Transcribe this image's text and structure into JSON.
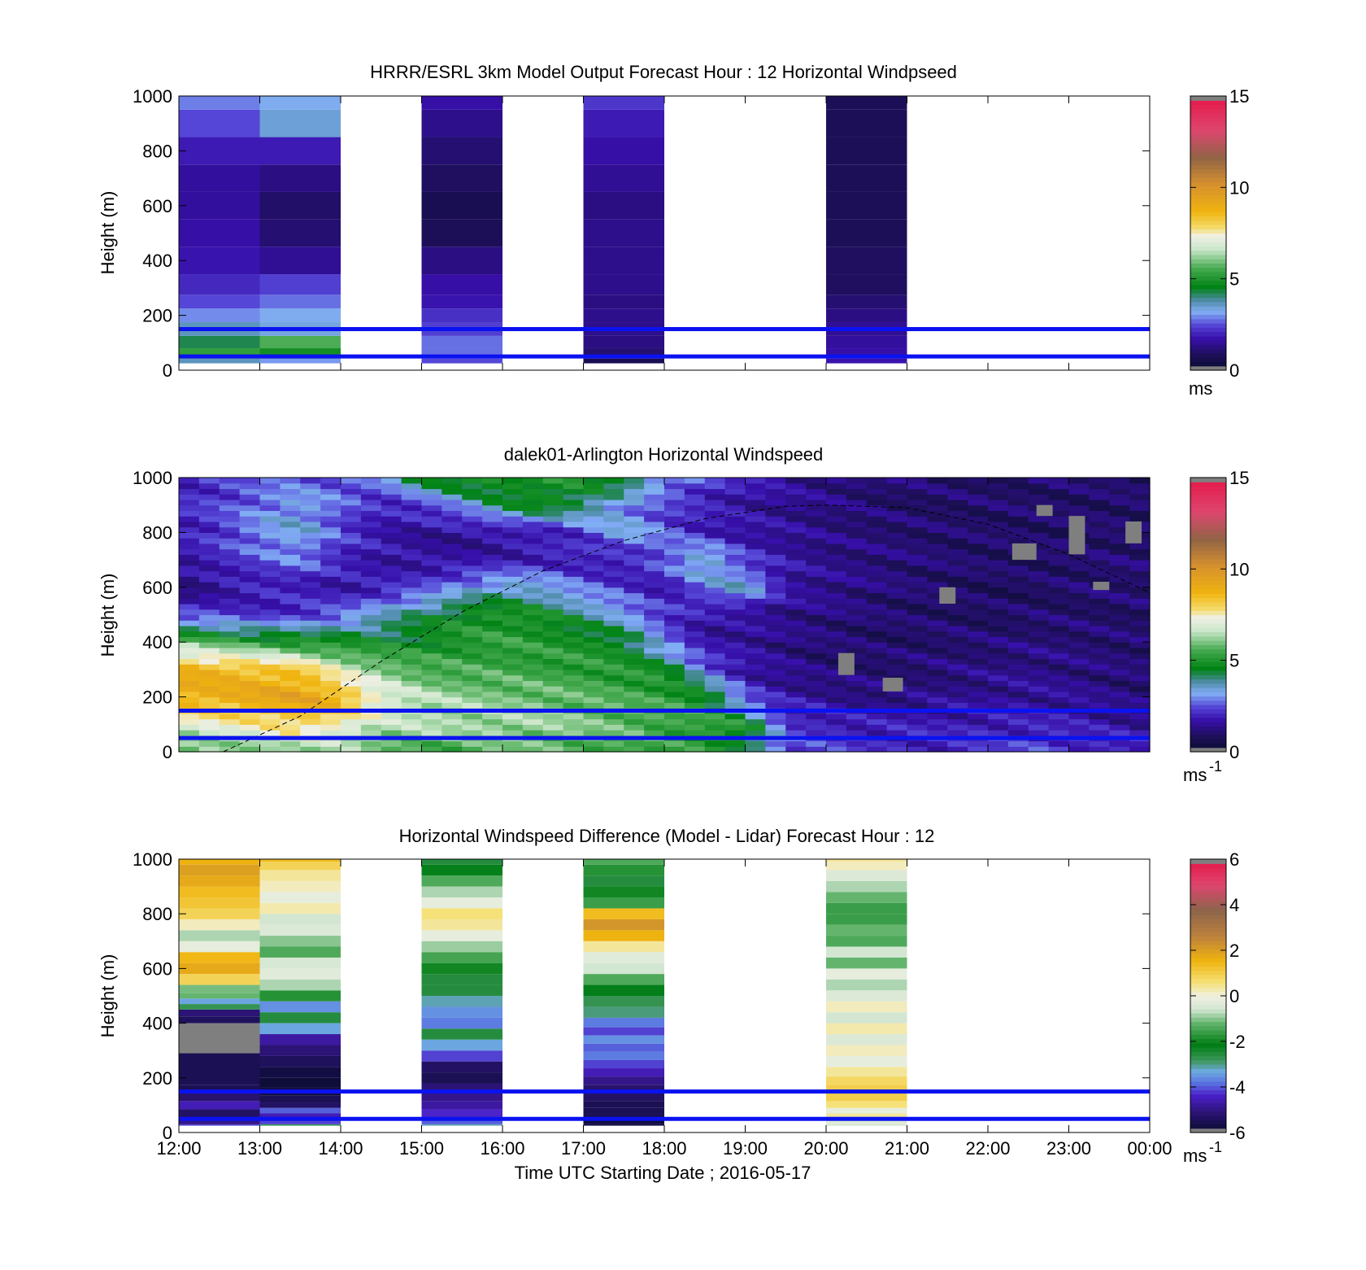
{
  "figure": {
    "xlabel": "Time UTC  Starting Date ; 2016-05-17",
    "time_ticks": [
      "12:00",
      "13:00",
      "14:00",
      "15:00",
      "16:00",
      "17:00",
      "18:00",
      "19:00",
      "20:00",
      "21:00",
      "22:00",
      "23:00",
      "00:00"
    ],
    "height_ticks": [
      "0",
      "200",
      "400",
      "600",
      "800",
      "1000"
    ]
  },
  "chart_data": [
    {
      "id": "model",
      "type": "heatmap",
      "title": "HRRR/ESRL 3km Model Output   Forecast Hour : 12 Horizontal Windpseed",
      "xlabel": "",
      "ylabel": "Height (m)",
      "x_range_hours": [
        12,
        24
      ],
      "ylim": [
        0,
        1000
      ],
      "colorbar": {
        "ticks": [
          "0",
          "5",
          "10",
          "15"
        ],
        "range": [
          0,
          15
        ],
        "unit_label": "ms",
        "unit_sup": ""
      },
      "reference_lines_m": [
        50,
        150
      ],
      "columns": [
        {
          "start": 12,
          "end": 13,
          "h": [
            25,
            60,
            100,
            150,
            200,
            250,
            300,
            400,
            500,
            600,
            700,
            800,
            900,
            1000
          ],
          "v": [
            3.6,
            5.2,
            4.2,
            3.6,
            2.9,
            2.4,
            2.0,
            1.7,
            1.6,
            1.5,
            1.5,
            1.8,
            2.4,
            2.8
          ]
        },
        {
          "start": 13,
          "end": 14,
          "h": [
            25,
            60,
            100,
            150,
            200,
            250,
            300,
            400,
            500,
            600,
            700,
            800,
            900,
            1000
          ],
          "v": [
            3.0,
            4.8,
            5.6,
            3.3,
            3.2,
            2.7,
            2.3,
            1.4,
            1.0,
            0.9,
            1.2,
            1.8,
            3.4,
            3.2
          ]
        },
        {
          "start": 15,
          "end": 16,
          "h": [
            25,
            60,
            100,
            150,
            200,
            250,
            300,
            400,
            500,
            600,
            700,
            800,
            900,
            1000
          ],
          "v": [
            2.4,
            2.7,
            2.7,
            2.3,
            2.1,
            1.7,
            1.6,
            1.2,
            0.7,
            0.6,
            0.8,
            1.0,
            1.3,
            1.6
          ]
        },
        {
          "start": 17,
          "end": 18,
          "h": [
            25,
            60,
            100,
            150,
            200,
            250,
            300,
            400,
            500,
            600,
            700,
            800,
            900,
            1000
          ],
          "v": [
            0.6,
            1.0,
            1.2,
            1.3,
            1.3,
            1.2,
            1.3,
            1.3,
            1.3,
            1.2,
            1.4,
            1.6,
            1.8,
            2.2
          ]
        },
        {
          "start": 20,
          "end": 21,
          "h": [
            25,
            60,
            100,
            150,
            200,
            250,
            300,
            400,
            500,
            600,
            700,
            800,
            900,
            1000
          ],
          "v": [
            1.7,
            1.6,
            1.5,
            1.4,
            1.2,
            1.0,
            0.8,
            0.8,
            0.7,
            0.7,
            0.7,
            0.7,
            0.7,
            0.7
          ]
        }
      ]
    },
    {
      "id": "lidar",
      "type": "heatmap",
      "title": "dalek01-Arlington  Horizontal Windspeed",
      "xlabel": "",
      "ylabel": "Height (m)",
      "x_range_hours": [
        12,
        24
      ],
      "ylim": [
        0,
        1000
      ],
      "colorbar": {
        "ticks": [
          "0",
          "5",
          "10",
          "15"
        ],
        "range": [
          0,
          15
        ],
        "unit_label": "ms",
        "unit_sup": "-1"
      },
      "reference_lines_m": [
        50,
        150
      ],
      "time_knots": [
        12,
        12.5,
        13,
        13.5,
        14,
        14.5,
        15,
        15.5,
        16,
        16.5,
        17,
        17.5,
        18,
        18.5,
        19,
        19.5,
        20,
        20.5,
        21,
        21.5,
        22,
        22.5,
        23,
        23.5,
        23.85
      ],
      "height_knots": [
        20,
        100,
        200,
        300,
        400,
        500,
        600,
        700,
        800,
        900,
        1000
      ],
      "speed_grid": [
        [
          5.5,
          6.0,
          6.2,
          6.4,
          6.2,
          5.8,
          5.5,
          5.6,
          5.8,
          5.8,
          5.6,
          5.5,
          5.2,
          5.0,
          4.5,
          2.5,
          2.2,
          2.0,
          2.0,
          2.0,
          2.1,
          2.3,
          2.2,
          2.0,
          1.9
        ],
        [
          7.0,
          7.3,
          7.5,
          8.0,
          7.5,
          6.5,
          6.5,
          6.4,
          6.4,
          6.3,
          6.0,
          5.8,
          5.5,
          5.3,
          5.0,
          2.2,
          2.0,
          1.8,
          1.8,
          1.8,
          1.9,
          1.9,
          1.8,
          1.6,
          1.5
        ],
        [
          9.0,
          9.0,
          9.3,
          9.5,
          8.8,
          7.2,
          6.5,
          6.2,
          6.0,
          5.9,
          5.7,
          5.5,
          5.3,
          5.0,
          2.4,
          1.6,
          1.4,
          1.2,
          1.2,
          1.3,
          1.4,
          1.5,
          1.4,
          1.2,
          1.1
        ],
        [
          9.0,
          8.8,
          8.5,
          8.3,
          7.0,
          6.2,
          5.6,
          5.4,
          5.4,
          5.3,
          5.2,
          5.0,
          4.8,
          2.8,
          1.5,
          1.3,
          1.0,
          1.0,
          1.0,
          1.1,
          1.2,
          1.3,
          1.2,
          1.1,
          1.0
        ],
        [
          6.0,
          5.6,
          5.2,
          5.0,
          4.8,
          4.6,
          4.7,
          5.0,
          5.2,
          5.0,
          4.9,
          4.6,
          2.8,
          1.5,
          1.6,
          1.2,
          1.0,
          0.9,
          0.9,
          1.0,
          1.0,
          1.1,
          1.1,
          1.0,
          1.0
        ],
        [
          2.3,
          2.2,
          2.0,
          2.2,
          2.6,
          3.5,
          4.2,
          4.8,
          5.0,
          4.8,
          4.0,
          3.2,
          2.2,
          1.6,
          1.4,
          1.3,
          1.2,
          1.0,
          0.9,
          0.9,
          0.8,
          0.9,
          0.9,
          0.9,
          0.9
        ],
        [
          1.0,
          1.4,
          1.8,
          1.8,
          1.6,
          1.8,
          2.3,
          3.0,
          3.6,
          3.3,
          2.6,
          2.2,
          1.6,
          2.8,
          3.6,
          1.6,
          1.4,
          1.2,
          1.0,
          0.9,
          0.8,
          0.8,
          0.9,
          1.0,
          1.0
        ],
        [
          1.6,
          2.0,
          2.4,
          2.8,
          2.0,
          1.6,
          1.5,
          1.5,
          1.7,
          1.9,
          1.8,
          1.6,
          2.6,
          3.8,
          2.2,
          1.6,
          1.3,
          1.2,
          1.1,
          1.0,
          0.9,
          0.9,
          1.0,
          1.0,
          1.0
        ],
        [
          1.8,
          2.2,
          3.0,
          3.4,
          2.3,
          1.7,
          1.4,
          1.4,
          1.5,
          1.7,
          2.2,
          3.5,
          2.6,
          1.9,
          1.6,
          1.4,
          1.2,
          1.1,
          1.0,
          0.9,
          0.9,
          0.9,
          0.9,
          0.9,
          0.9
        ],
        [
          2.0,
          2.3,
          2.8,
          3.2,
          2.6,
          1.8,
          2.2,
          3.0,
          4.2,
          4.8,
          4.2,
          3.0,
          2.2,
          1.8,
          1.6,
          1.4,
          1.2,
          1.0,
          0.9,
          0.9,
          0.9,
          0.9,
          0.9,
          0.9,
          0.9
        ],
        [
          1.9,
          2.1,
          2.4,
          2.6,
          2.5,
          3.0,
          4.5,
          5.2,
          5.0,
          4.8,
          4.8,
          4.5,
          3.2,
          2.4,
          1.8,
          1.5,
          1.3,
          1.1,
          1.0,
          0.9,
          0.9,
          0.9,
          0.9,
          0.9,
          0.9
        ]
      ],
      "missing_patches": [
        {
          "t0": 22.6,
          "t1": 22.8,
          "z0": 860,
          "z1": 900
        },
        {
          "t0": 23.0,
          "t1": 23.2,
          "z0": 720,
          "z1": 860
        },
        {
          "t0": 23.3,
          "t1": 23.5,
          "z0": 590,
          "z1": 620
        },
        {
          "t0": 23.7,
          "t1": 23.9,
          "z0": 760,
          "z1": 840
        },
        {
          "t0": 22.3,
          "t1": 22.6,
          "z0": 700,
          "z1": 760
        },
        {
          "t0": 20.7,
          "t1": 20.95,
          "z0": 220,
          "z1": 270
        },
        {
          "t0": 20.15,
          "t1": 20.35,
          "z0": 280,
          "z1": 360
        },
        {
          "t0": 21.4,
          "t1": 21.6,
          "z0": 540,
          "z1": 600
        }
      ],
      "dashed_curve_m": {
        "t": [
          12.55,
          13.5,
          14.5,
          15.5,
          16.5,
          17.5,
          18.5,
          19.5,
          20.0,
          21.0,
          22.0,
          23.0,
          24.0
        ],
        "z": [
          0,
          130,
          330,
          510,
          660,
          770,
          850,
          895,
          900,
          890,
          830,
          720,
          580
        ]
      }
    },
    {
      "id": "difference",
      "type": "heatmap",
      "title": "Horizontal Windspeed Difference (Model - Lidar) Forecast Hour : 12",
      "xlabel": "Time UTC  Starting Date ; 2016-05-17",
      "ylabel": "Height (m)",
      "x_range_hours": [
        12,
        24
      ],
      "ylim": [
        0,
        1000
      ],
      "colorbar": {
        "ticks": [
          "-6",
          "-4",
          "-2",
          "0",
          "2",
          "4",
          "6"
        ],
        "range": [
          -6,
          6
        ],
        "unit_label": "ms",
        "unit_sup": "-1"
      },
      "reference_lines_m": [
        50,
        150
      ],
      "columns": [
        {
          "start": 12,
          "end": 13,
          "h": [
            20,
            40,
            70,
            100,
            130,
            160,
            190,
            390,
            410,
            440,
            460,
            480,
            500,
            520,
            560,
            600,
            640,
            680,
            720,
            760,
            800,
            840,
            880,
            920,
            960,
            1000
          ],
          "v": [
            -4.2,
            -5.0,
            -5.4,
            -4.6,
            -5.3,
            -5.6,
            -5.6,
            -9,
            -5.5,
            -5.2,
            -2.8,
            -3.4,
            -1.2,
            -1.1,
            0.9,
            1.8,
            1.5,
            -0.2,
            -0.8,
            0.2,
            0.9,
            1.2,
            1.4,
            1.8,
            2.0,
            1.6
          ]
        },
        {
          "start": 13,
          "end": 14,
          "h": [
            20,
            40,
            60,
            80,
            100,
            120,
            150,
            180,
            220,
            260,
            300,
            340,
            380,
            420,
            460,
            500,
            540,
            580,
            620,
            660,
            700,
            740,
            780,
            820,
            860,
            900,
            940,
            980,
            1000
          ],
          "v": [
            -2.8,
            -4.2,
            -4.6,
            -4.0,
            -5.4,
            -5.6,
            -5.8,
            -5.9,
            -5.8,
            -5.5,
            -5.2,
            -4.8,
            -3.4,
            -2.6,
            -3.6,
            -1.8,
            -0.8,
            -0.3,
            -0.5,
            -1.4,
            -1.0,
            -0.4,
            -0.6,
            0.3,
            -0.2,
            0.2,
            0.4,
            0.9,
            1.4
          ]
        },
        {
          "start": 15,
          "end": 16,
          "h": [
            20,
            40,
            70,
            100,
            130,
            160,
            200,
            240,
            280,
            320,
            360,
            400,
            440,
            480,
            520,
            560,
            600,
            640,
            680,
            720,
            760,
            800,
            840,
            880,
            920,
            960,
            1000
          ],
          "v": [
            -3.2,
            -4.0,
            -4.4,
            -4.8,
            -5.0,
            -5.2,
            -5.6,
            -5.4,
            -4.2,
            -3.4,
            -2.6,
            -3.8,
            -3.6,
            -3.2,
            -2.6,
            -2.6,
            -2.0,
            -1.5,
            -0.9,
            -0.2,
            0.4,
            0.6,
            -0.2,
            -0.8,
            -1.4,
            -2.1,
            -2.6
          ]
        },
        {
          "start": 17,
          "end": 18,
          "h": [
            20,
            40,
            60,
            80,
            100,
            130,
            160,
            190,
            220,
            250,
            280,
            310,
            340,
            370,
            400,
            440,
            480,
            520,
            560,
            600,
            640,
            680,
            720,
            760,
            800,
            840,
            880,
            920,
            960,
            1000
          ],
          "v": [
            -5.8,
            -5.8,
            -5.6,
            -5.6,
            -5.6,
            -5.4,
            -5.3,
            -5.0,
            -4.6,
            -4.2,
            -3.8,
            -4.0,
            -3.6,
            -4.2,
            -3.8,
            -3.0,
            -2.8,
            -2.2,
            -1.4,
            -0.6,
            -0.3,
            0.4,
            1.6,
            2.2,
            1.4,
            -1.6,
            -2.0,
            -2.6,
            -1.8,
            -1.4
          ]
        },
        {
          "start": 20,
          "end": 21,
          "h": [
            20,
            40,
            60,
            80,
            100,
            130,
            160,
            190,
            220,
            260,
            300,
            340,
            380,
            420,
            460,
            500,
            540,
            580,
            620,
            660,
            700,
            740,
            780,
            820,
            860,
            900,
            940,
            980,
            1000
          ],
          "v": [
            -0.6,
            -0.3,
            0.4,
            -0.2,
            0.6,
            1.0,
            1.0,
            0.8,
            0.4,
            -0.2,
            0.2,
            -0.4,
            0.3,
            -0.6,
            0.2,
            -0.4,
            -0.8,
            -0.2,
            -1.2,
            -0.6,
            -1.4,
            -1.2,
            -1.6,
            -1.6,
            -1.2,
            -0.8,
            -0.4,
            0.2,
            0.4
          ]
        }
      ]
    }
  ],
  "colors": {
    "reference_line": "#0a12f0",
    "missing": "#7f7f7f"
  }
}
